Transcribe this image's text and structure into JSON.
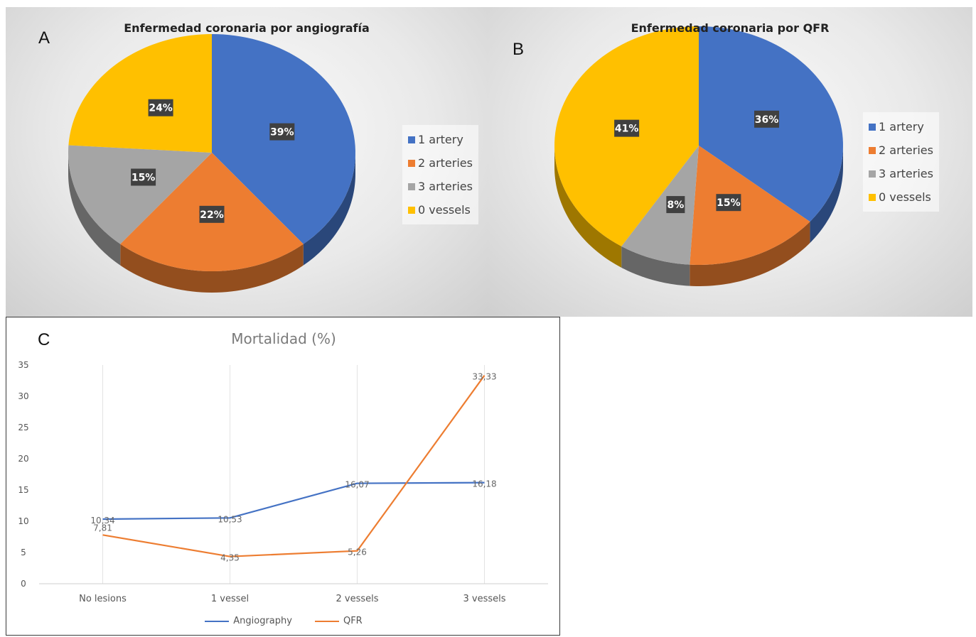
{
  "colors": {
    "blue": "#4472C4",
    "orange": "#ED7D31",
    "gray": "#A5A5A5",
    "yellow": "#FFC000"
  },
  "chart_data": [
    {
      "type": "pie",
      "panel_label": "A",
      "title": "Enfermedad coronaria por angiografía",
      "categories": [
        "1 artery",
        "2 arteries",
        "3 arteries",
        "0 vessels"
      ],
      "values": [
        39,
        22,
        15,
        24
      ],
      "data_labels": [
        "39%",
        "22%",
        "15%",
        "24%"
      ],
      "legend_position": "right"
    },
    {
      "type": "pie",
      "panel_label": "B",
      "title": "Enfermedad coronaria por QFR",
      "categories": [
        "1 artery",
        "2 arteries",
        "3 arteries",
        "0 vessels"
      ],
      "values": [
        36,
        15,
        8,
        41
      ],
      "data_labels": [
        "36%",
        "15%",
        "8%",
        "41%"
      ],
      "legend_position": "right"
    },
    {
      "type": "line",
      "panel_label": "C",
      "title": "Mortalidad  (%)",
      "categories": [
        "No lesions",
        "1 vessel",
        "2 vessels",
        "3 vessels"
      ],
      "ylim": [
        0,
        35
      ],
      "yticks": [
        0,
        5,
        10,
        15,
        20,
        25,
        30,
        35
      ],
      "series": [
        {
          "name": "Angiography",
          "values": [
            10.34,
            10.53,
            16.07,
            16.18
          ],
          "labels": [
            "10,34",
            "10,53",
            "16,07",
            "16,18"
          ]
        },
        {
          "name": "QFR",
          "values": [
            7.81,
            4.35,
            5.26,
            33.33
          ],
          "labels": [
            "7,81",
            "4,35",
            "5,26",
            "33,33"
          ]
        }
      ],
      "legend_position": "bottom",
      "grid": "vertical"
    }
  ]
}
